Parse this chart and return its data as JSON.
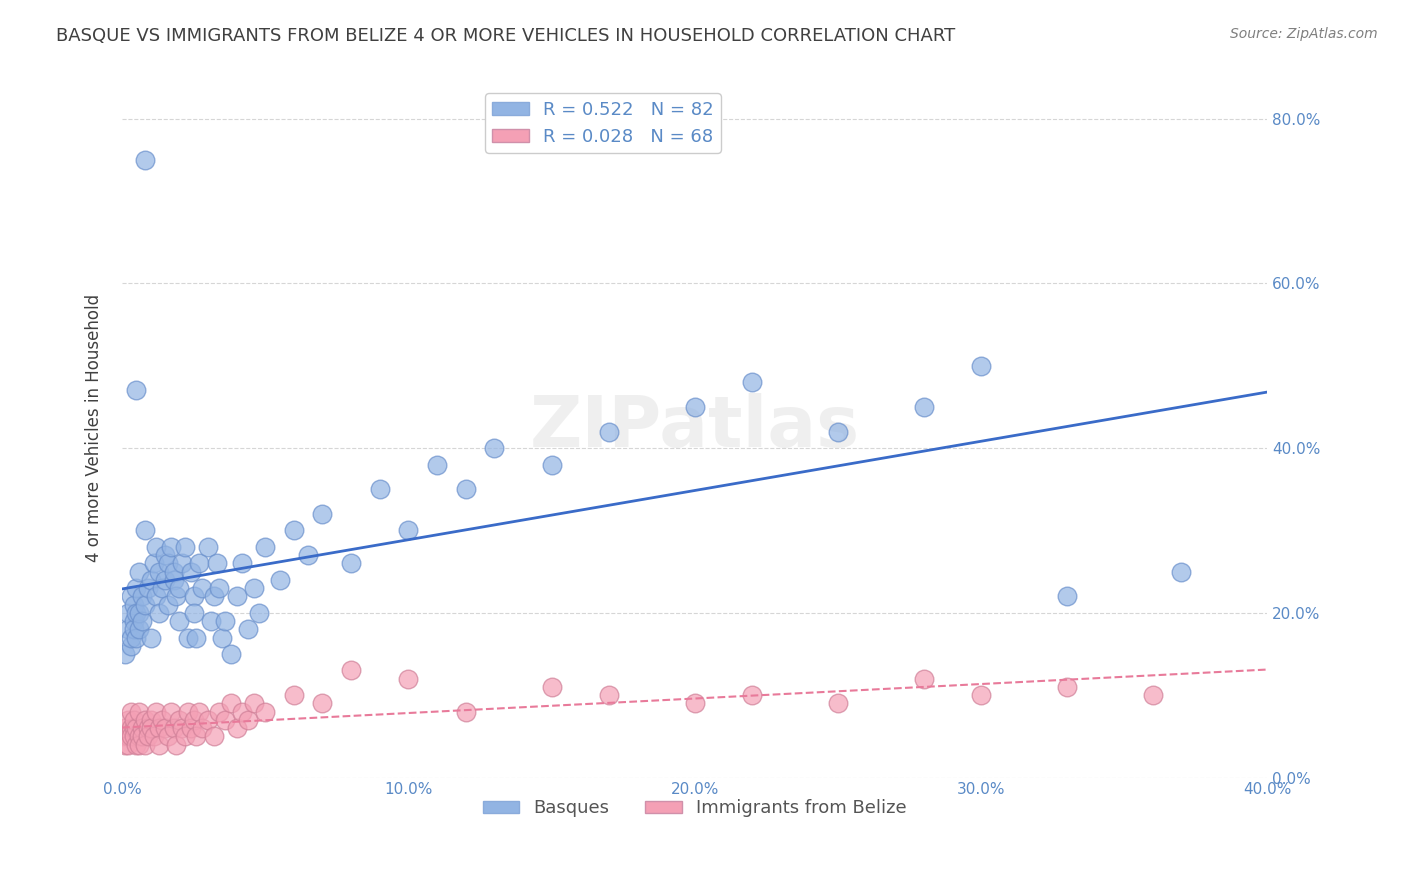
{
  "title": "BASQUE VS IMMIGRANTS FROM BELIZE 4 OR MORE VEHICLES IN HOUSEHOLD CORRELATION CHART",
  "source": "Source: ZipAtlas.com",
  "xlabel_bottom": "",
  "ylabel": "4 or more Vehicles in Household",
  "legend_labels": [
    "Basques",
    "Immigrants from Belize"
  ],
  "r_basque": 0.522,
  "n_basque": 82,
  "r_belize": 0.028,
  "n_belize": 68,
  "blue_color": "#92b4e3",
  "pink_color": "#f4a0b5",
  "blue_line_color": "#3a6bc8",
  "pink_line_color": "#e87a9a",
  "axis_label_color": "#5a8ac6",
  "title_color": "#404040",
  "watermark": "ZIPatlas",
  "xlim": [
    0.0,
    0.4
  ],
  "ylim": [
    0.0,
    0.85
  ],
  "xticks": [
    0.0,
    0.1,
    0.2,
    0.3,
    0.4
  ],
  "yticks_left": [
    0.0,
    0.2,
    0.4,
    0.6,
    0.8
  ],
  "yticks_right": [
    0.0,
    0.2,
    0.4,
    0.6,
    0.8
  ],
  "basque_x": [
    0.001,
    0.002,
    0.002,
    0.003,
    0.003,
    0.003,
    0.004,
    0.004,
    0.004,
    0.005,
    0.005,
    0.005,
    0.006,
    0.006,
    0.006,
    0.007,
    0.007,
    0.008,
    0.008,
    0.009,
    0.01,
    0.01,
    0.011,
    0.012,
    0.012,
    0.013,
    0.013,
    0.014,
    0.015,
    0.015,
    0.016,
    0.016,
    0.017,
    0.018,
    0.018,
    0.019,
    0.02,
    0.02,
    0.021,
    0.022,
    0.023,
    0.024,
    0.025,
    0.025,
    0.026,
    0.027,
    0.028,
    0.03,
    0.031,
    0.032,
    0.033,
    0.034,
    0.035,
    0.036,
    0.038,
    0.04,
    0.042,
    0.044,
    0.046,
    0.048,
    0.05,
    0.055,
    0.06,
    0.065,
    0.07,
    0.08,
    0.09,
    0.1,
    0.11,
    0.12,
    0.13,
    0.15,
    0.17,
    0.2,
    0.22,
    0.25,
    0.28,
    0.3,
    0.33,
    0.37,
    0.005,
    0.008
  ],
  "basque_y": [
    0.15,
    0.18,
    0.2,
    0.16,
    0.22,
    0.17,
    0.19,
    0.21,
    0.18,
    0.2,
    0.23,
    0.17,
    0.25,
    0.18,
    0.2,
    0.22,
    0.19,
    0.3,
    0.21,
    0.23,
    0.17,
    0.24,
    0.26,
    0.22,
    0.28,
    0.2,
    0.25,
    0.23,
    0.27,
    0.24,
    0.21,
    0.26,
    0.28,
    0.24,
    0.25,
    0.22,
    0.19,
    0.23,
    0.26,
    0.28,
    0.17,
    0.25,
    0.22,
    0.2,
    0.17,
    0.26,
    0.23,
    0.28,
    0.19,
    0.22,
    0.26,
    0.23,
    0.17,
    0.19,
    0.15,
    0.22,
    0.26,
    0.18,
    0.23,
    0.2,
    0.28,
    0.24,
    0.3,
    0.27,
    0.32,
    0.26,
    0.35,
    0.3,
    0.38,
    0.35,
    0.4,
    0.38,
    0.42,
    0.45,
    0.48,
    0.42,
    0.45,
    0.5,
    0.22,
    0.25,
    0.47,
    0.75
  ],
  "belize_x": [
    0.0005,
    0.001,
    0.001,
    0.002,
    0.002,
    0.002,
    0.003,
    0.003,
    0.003,
    0.004,
    0.004,
    0.004,
    0.005,
    0.005,
    0.006,
    0.006,
    0.006,
    0.007,
    0.007,
    0.008,
    0.008,
    0.009,
    0.009,
    0.01,
    0.01,
    0.011,
    0.012,
    0.013,
    0.013,
    0.014,
    0.015,
    0.016,
    0.017,
    0.018,
    0.019,
    0.02,
    0.021,
    0.022,
    0.023,
    0.024,
    0.025,
    0.026,
    0.027,
    0.028,
    0.03,
    0.032,
    0.034,
    0.036,
    0.038,
    0.04,
    0.042,
    0.044,
    0.046,
    0.05,
    0.06,
    0.07,
    0.08,
    0.1,
    0.12,
    0.15,
    0.17,
    0.2,
    0.22,
    0.25,
    0.28,
    0.3,
    0.33,
    0.36
  ],
  "belize_y": [
    0.05,
    0.04,
    0.06,
    0.05,
    0.07,
    0.04,
    0.06,
    0.05,
    0.08,
    0.06,
    0.05,
    0.07,
    0.04,
    0.06,
    0.05,
    0.08,
    0.04,
    0.06,
    0.05,
    0.07,
    0.04,
    0.06,
    0.05,
    0.07,
    0.06,
    0.05,
    0.08,
    0.06,
    0.04,
    0.07,
    0.06,
    0.05,
    0.08,
    0.06,
    0.04,
    0.07,
    0.06,
    0.05,
    0.08,
    0.06,
    0.07,
    0.05,
    0.08,
    0.06,
    0.07,
    0.05,
    0.08,
    0.07,
    0.09,
    0.06,
    0.08,
    0.07,
    0.09,
    0.08,
    0.1,
    0.09,
    0.13,
    0.12,
    0.08,
    0.11,
    0.1,
    0.09,
    0.1,
    0.09,
    0.12,
    0.1,
    0.11,
    0.1
  ]
}
